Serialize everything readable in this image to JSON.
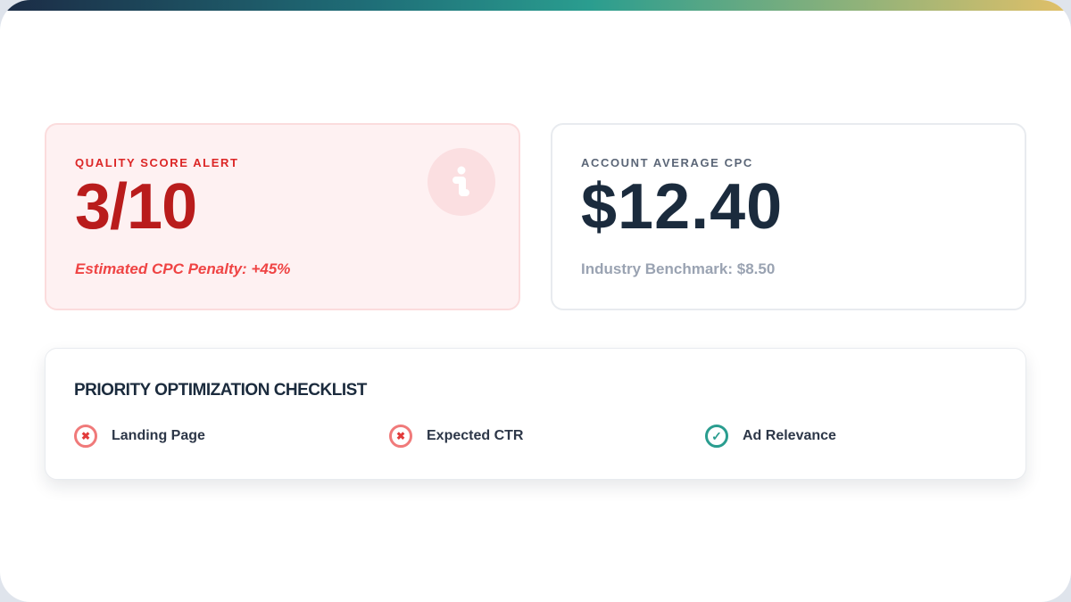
{
  "colors": {
    "alert": "#b91c1c",
    "accent_teal": "#2a9d8f",
    "navy": "#1b2b3d"
  },
  "alert_card": {
    "label": "QUALITY SCORE ALERT",
    "score": "3/10",
    "penalty": "Estimated CPC Penalty: +45%",
    "icon": "info-icon"
  },
  "cpc_card": {
    "label": "ACCOUNT AVERAGE CPC",
    "value": "$12.40",
    "benchmark": "Industry Benchmark: $8.50"
  },
  "checklist": {
    "title": "PRIORITY OPTIMIZATION CHECKLIST",
    "items": [
      {
        "label": "Landing Page",
        "status": "fail",
        "icon": "x-icon",
        "glyph": "✖"
      },
      {
        "label": "Expected CTR",
        "status": "fail",
        "icon": "x-icon",
        "glyph": "✖"
      },
      {
        "label": "Ad Relevance",
        "status": "pass",
        "icon": "check-icon",
        "glyph": "✓"
      }
    ]
  }
}
